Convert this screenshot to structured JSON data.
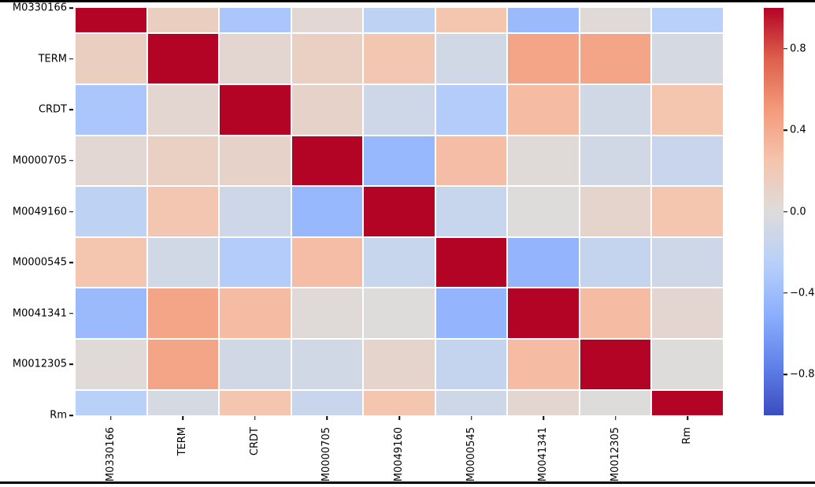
{
  "figure": {
    "background": "#ffffff",
    "top_rule_color": "#000000",
    "bottom_rule_color": "#000000"
  },
  "chart_data": {
    "type": "heatmap",
    "title": "",
    "xlabel": "",
    "ylabel": "",
    "x_labels": [
      "M0330166",
      "TERM",
      "CRDT",
      "M0000705",
      "M0049160",
      "M0000545",
      "M0041341",
      "M0012305",
      "Rm"
    ],
    "y_labels": [
      "M0330166",
      "TERM",
      "CRDT",
      "M0000705",
      "M0049160",
      "M0000545",
      "M0041341",
      "M0012305",
      "Rm"
    ],
    "matrix": [
      [
        1.0,
        0.14,
        -0.33,
        0.05,
        -0.21,
        0.24,
        -0.42,
        0.02,
        -0.24
      ],
      [
        0.14,
        1.0,
        0.06,
        0.13,
        0.23,
        -0.08,
        0.44,
        0.44,
        -0.06
      ],
      [
        -0.33,
        0.06,
        1.0,
        0.1,
        -0.1,
        -0.28,
        0.3,
        -0.08,
        0.24
      ],
      [
        0.05,
        0.13,
        0.1,
        1.0,
        -0.44,
        0.29,
        0.02,
        -0.09,
        -0.14
      ],
      [
        -0.21,
        0.23,
        -0.1,
        -0.44,
        1.0,
        -0.15,
        0.0,
        0.08,
        0.24
      ],
      [
        0.24,
        -0.08,
        -0.28,
        0.29,
        -0.15,
        1.0,
        -0.46,
        -0.17,
        -0.11
      ],
      [
        -0.42,
        0.44,
        0.3,
        0.02,
        0.0,
        -0.46,
        1.0,
        0.3,
        0.06
      ],
      [
        0.02,
        0.44,
        -0.08,
        -0.09,
        0.08,
        -0.17,
        0.3,
        1.0,
        0.0
      ],
      [
        -0.24,
        -0.06,
        0.24,
        -0.14,
        0.24,
        -0.11,
        0.06,
        0.0,
        1.0
      ]
    ],
    "value_range": [
      -1,
      1
    ],
    "first_last_row_half_clipped": true,
    "grid_line_color": "#ffffff",
    "colormap": "coolwarm",
    "colormap_anchors": [
      [
        0.0,
        59,
        76,
        192
      ],
      [
        0.125,
        98,
        130,
        234
      ],
      [
        0.25,
        141,
        176,
        254
      ],
      [
        0.375,
        184,
        208,
        249
      ],
      [
        0.5,
        221,
        220,
        219
      ],
      [
        0.625,
        245,
        196,
        173
      ],
      [
        0.75,
        244,
        154,
        123
      ],
      [
        0.875,
        222,
        96,
        77
      ],
      [
        1.0,
        180,
        4,
        38
      ]
    ],
    "colorbar": {
      "ticks": [
        {
          "label": "0.8",
          "value": 0.8
        },
        {
          "label": "0.4",
          "value": 0.4
        },
        {
          "label": "0.0",
          "value": 0.0
        },
        {
          "label": "−0.4",
          "value": -0.4
        },
        {
          "label": "−0.8",
          "value": -0.8
        }
      ],
      "position": "right"
    },
    "legend": null,
    "grid": false
  }
}
